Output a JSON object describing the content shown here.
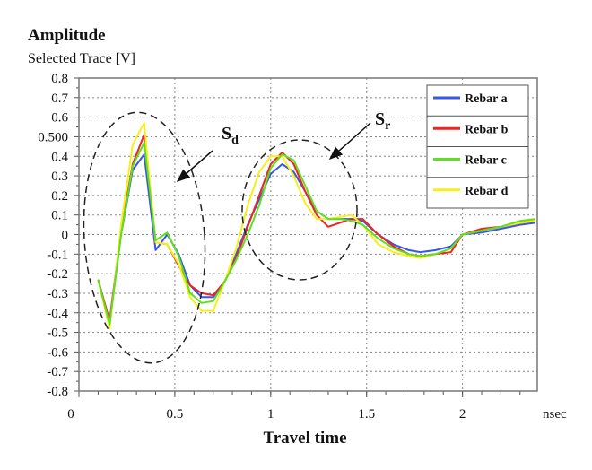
{
  "chart_data": {
    "type": "line",
    "title": "Amplitude",
    "ylabel": "Selected Trace [V]",
    "xlabel": "Travel time",
    "x_unit_label": "nsec",
    "xlim": [
      0,
      2.39
    ],
    "ylim": [
      -0.8,
      0.8
    ],
    "grid": true,
    "legend_position": "top-right",
    "x_ticks": [
      0,
      0.5,
      1,
      1.5,
      2
    ],
    "x_tick_labels": [
      "0",
      "0.5",
      "1",
      "1.5",
      "2"
    ],
    "y_ticks": [
      0.8,
      0.7,
      0.6,
      0.5,
      0.4,
      0.3,
      0.2,
      0.1,
      0,
      -0.1,
      -0.2,
      -0.3,
      -0.4,
      -0.5,
      -0.6,
      -0.7,
      -0.8
    ],
    "y_tick_labels": [
      "0.8",
      "0.7",
      "0.6",
      "0.500",
      "0.4",
      "0.3",
      "0.2",
      "0.1",
      "0",
      "-0.1",
      "-0.2",
      "-0.3",
      "-0.4",
      "-0.5",
      "-0.6",
      "-0.7",
      "-0.8"
    ],
    "x": [
      0.1,
      0.16,
      0.22,
      0.28,
      0.34,
      0.4,
      0.46,
      0.52,
      0.58,
      0.64,
      0.7,
      0.76,
      0.82,
      0.88,
      0.94,
      1.0,
      1.06,
      1.12,
      1.18,
      1.24,
      1.3,
      1.36,
      1.42,
      1.48,
      1.56,
      1.64,
      1.72,
      1.78,
      1.86,
      1.94,
      2.0,
      2.1,
      2.2,
      2.3,
      2.38
    ],
    "series": [
      {
        "name": "Rebar a",
        "color": "#3a55e8",
        "values": [
          -0.23,
          -0.45,
          0.0,
          0.33,
          0.41,
          -0.08,
          0.0,
          -0.1,
          -0.26,
          -0.32,
          -0.32,
          -0.24,
          -0.1,
          0.05,
          0.18,
          0.31,
          0.36,
          0.32,
          0.22,
          0.12,
          0.08,
          0.08,
          0.08,
          0.07,
          0.0,
          -0.05,
          -0.08,
          -0.09,
          -0.08,
          -0.06,
          0.0,
          0.01,
          0.03,
          0.05,
          0.06
        ]
      },
      {
        "name": "Rebar b",
        "color": "#ee2424",
        "values": [
          -0.23,
          -0.44,
          0.02,
          0.36,
          0.51,
          -0.04,
          -0.05,
          -0.16,
          -0.26,
          -0.3,
          -0.31,
          -0.24,
          -0.12,
          0.04,
          0.2,
          0.36,
          0.42,
          0.36,
          0.22,
          0.1,
          0.04,
          0.06,
          0.08,
          0.08,
          0.0,
          -0.06,
          -0.1,
          -0.11,
          -0.1,
          -0.09,
          0.0,
          0.03,
          0.04,
          0.06,
          0.07
        ]
      },
      {
        "name": "Rebar c",
        "color": "#5ee01e",
        "values": [
          -0.23,
          -0.46,
          0.0,
          0.35,
          0.47,
          -0.03,
          0.01,
          -0.11,
          -0.3,
          -0.35,
          -0.34,
          -0.24,
          -0.13,
          0.0,
          0.15,
          0.34,
          0.41,
          0.38,
          0.25,
          0.12,
          0.08,
          0.08,
          0.07,
          0.05,
          -0.02,
          -0.07,
          -0.1,
          -0.11,
          -0.1,
          -0.07,
          0.0,
          0.02,
          0.04,
          0.07,
          0.08
        ]
      },
      {
        "name": "Rebar d",
        "color": "#f5f01a",
        "values": [
          -0.23,
          -0.48,
          0.05,
          0.46,
          0.57,
          -0.04,
          -0.05,
          -0.15,
          -0.32,
          -0.39,
          -0.39,
          -0.24,
          -0.07,
          0.15,
          0.32,
          0.4,
          0.4,
          0.3,
          0.16,
          0.08,
          0.08,
          0.09,
          0.1,
          0.05,
          -0.05,
          -0.09,
          -0.11,
          -0.12,
          -0.1,
          -0.07,
          0.0,
          0.02,
          0.04,
          0.06,
          0.07
        ]
      }
    ],
    "annotations": [
      {
        "label": "S",
        "subscript": "d"
      },
      {
        "label": "S",
        "subscript": "r"
      }
    ]
  }
}
